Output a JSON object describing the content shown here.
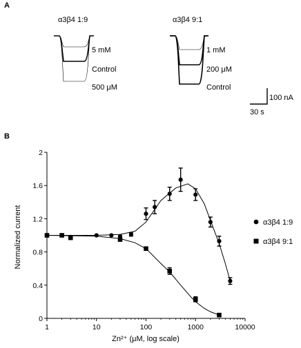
{
  "panel_a": {
    "letter": "A",
    "left_title": "α3β4 1:9",
    "right_title": "α3β4 9:1",
    "left_traces": [
      "5 mM",
      "Control",
      "500 μM"
    ],
    "right_traces": [
      "1 mM",
      "200 μM",
      "Control"
    ],
    "scale_current": "100 nA",
    "scale_time": "30 s"
  },
  "panel_b": {
    "letter": "B"
  },
  "chart_data": {
    "type": "scatter",
    "title": "",
    "xlabel": "Zn²⁺ (μM, log scale)",
    "ylabel": "Normalized current",
    "xscale": "log",
    "xlim": [
      1,
      10000
    ],
    "ylim": [
      0,
      2
    ],
    "xticks": [
      1,
      10,
      100,
      1000,
      10000
    ],
    "xtick_labels": [
      "1",
      "10",
      "100",
      "1000",
      "10000"
    ],
    "yticks": [
      0,
      0.4,
      0.8,
      1.2,
      1.6,
      2
    ],
    "ytick_labels": [
      "0",
      "0.4",
      "0.8",
      "1.2",
      "1.6",
      "2"
    ],
    "legend_position": "right",
    "grid": false,
    "series": [
      {
        "name": "α3β4 1:9",
        "marker": "circle",
        "x": [
          1,
          3,
          10,
          20,
          30,
          50,
          100,
          150,
          300,
          500,
          1000,
          2000,
          3000,
          5000
        ],
        "y": [
          1.0,
          0.98,
          1.0,
          1.0,
          0.99,
          1.01,
          1.26,
          1.34,
          1.5,
          1.67,
          1.49,
          1.16,
          0.93,
          0.45
        ],
        "err": [
          0,
          0,
          0,
          0,
          0,
          0.02,
          0.07,
          0.08,
          0.08,
          0.14,
          0.07,
          0.06,
          0.06,
          0.04
        ],
        "fit_x": [
          1,
          10,
          30,
          60,
          100,
          200,
          400,
          700,
          1000,
          1500,
          2000,
          3000,
          4000,
          5000
        ],
        "fit_y": [
          1.0,
          1.0,
          1.01,
          1.05,
          1.16,
          1.42,
          1.57,
          1.62,
          1.56,
          1.38,
          1.18,
          0.9,
          0.66,
          0.45
        ]
      },
      {
        "name": "α3β4 9:1",
        "marker": "square",
        "x": [
          1,
          2,
          3,
          30,
          100,
          300,
          1000,
          3000
        ],
        "y": [
          1.0,
          1.0,
          0.97,
          0.95,
          0.84,
          0.57,
          0.23,
          0.04
        ],
        "err": [
          0,
          0,
          0,
          0.02,
          0.02,
          0.04,
          0.03,
          0.02
        ],
        "fit_x": [
          1,
          10,
          30,
          60,
          100,
          200,
          300,
          500,
          800,
          1000,
          1500,
          2000,
          3000
        ],
        "fit_y": [
          1.0,
          0.99,
          0.96,
          0.91,
          0.84,
          0.66,
          0.56,
          0.4,
          0.26,
          0.2,
          0.12,
          0.08,
          0.04
        ]
      }
    ]
  }
}
